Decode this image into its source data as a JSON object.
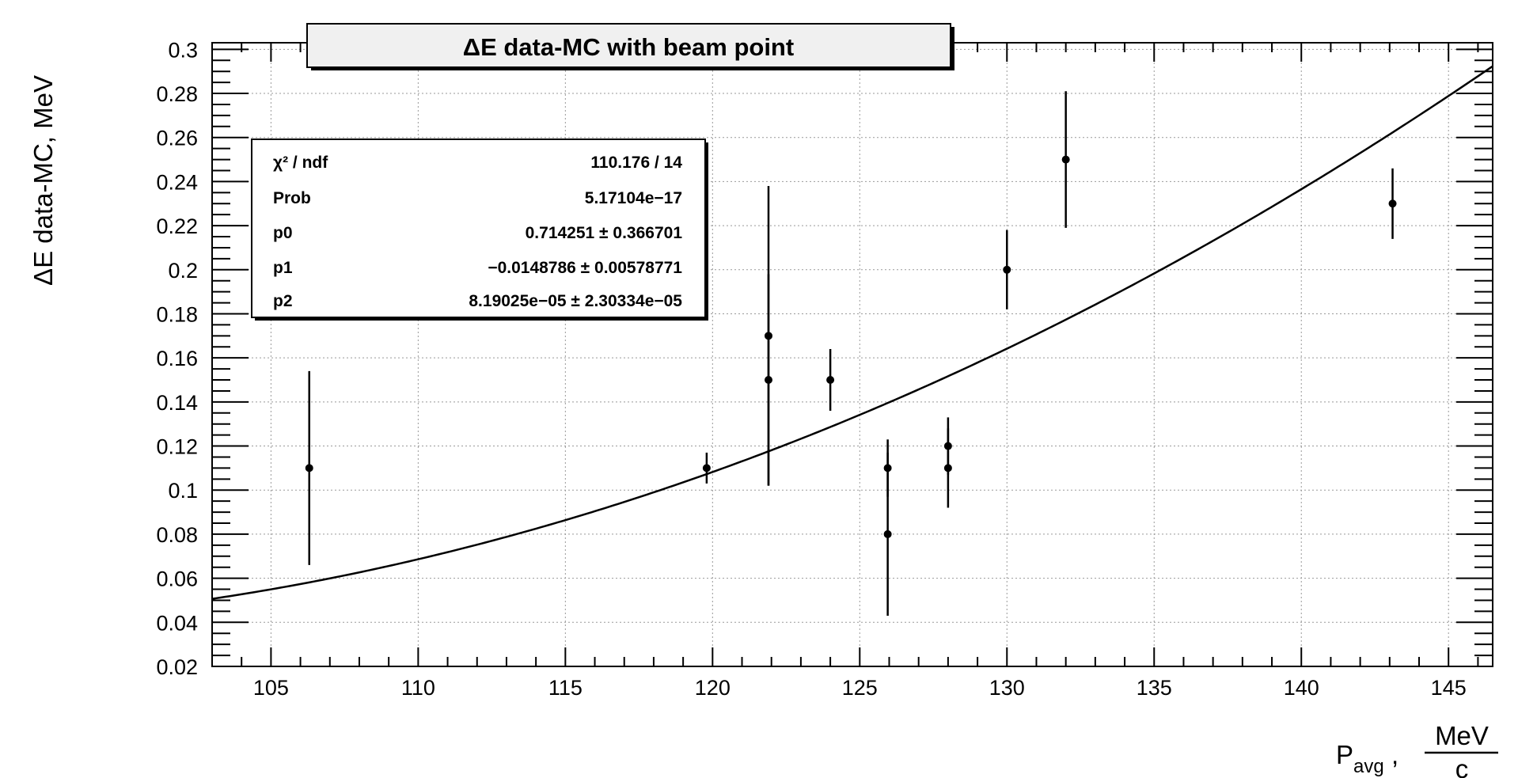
{
  "chart_data": {
    "type": "scatter",
    "title": "ΔE data-MC with beam point",
    "ylabel": "ΔE data-MC, MeV",
    "xlabel": {
      "main": "P",
      "subscript": "avg",
      "separator": ",",
      "unit_numerator": "MeV",
      "unit_denominator": "c"
    },
    "xlim": [
      103,
      146.5
    ],
    "ylim": [
      0.02,
      0.303
    ],
    "x_ticks": [
      105,
      110,
      115,
      120,
      125,
      130,
      135,
      140,
      145
    ],
    "y_ticks": [
      0.02,
      0.04,
      0.06,
      0.08,
      0.1,
      0.12,
      0.14,
      0.16,
      0.18,
      0.2,
      0.22,
      0.24,
      0.26,
      0.28,
      0.3
    ],
    "y_tick_labels": [
      "0.02",
      "0.04",
      "0.06",
      "0.08",
      "0.1",
      "0.12",
      "0.14",
      "0.16",
      "0.18",
      "0.2",
      "0.22",
      "0.24",
      "0.26",
      "0.28",
      "0.3"
    ],
    "grid": true,
    "points": [
      {
        "x": 106.3,
        "y": 0.11,
        "ylo": 0.066,
        "yhi": 0.154
      },
      {
        "x": 119.8,
        "y": 0.11,
        "ylo": 0.103,
        "yhi": 0.117
      },
      {
        "x": 121.9,
        "y": 0.17,
        "ylo": 0.102,
        "yhi": 0.238
      },
      {
        "x": 121.9,
        "y": 0.15,
        "ylo": 0.102,
        "yhi": 0.198
      },
      {
        "x": 124.0,
        "y": 0.15,
        "ylo": 0.136,
        "yhi": 0.164
      },
      {
        "x": 125.95,
        "y": 0.11,
        "ylo": 0.097,
        "yhi": 0.123
      },
      {
        "x": 125.95,
        "y": 0.08,
        "ylo": 0.043,
        "yhi": 0.117
      },
      {
        "x": 128.0,
        "y": 0.12,
        "ylo": 0.107,
        "yhi": 0.133
      },
      {
        "x": 128.0,
        "y": 0.11,
        "ylo": 0.092,
        "yhi": 0.128
      },
      {
        "x": 130.0,
        "y": 0.2,
        "ylo": 0.182,
        "yhi": 0.218
      },
      {
        "x": 132.0,
        "y": 0.25,
        "ylo": 0.219,
        "yhi": 0.281
      },
      {
        "x": 143.1,
        "y": 0.23,
        "ylo": 0.214,
        "yhi": 0.246
      }
    ],
    "fit": {
      "function": "p0 + p1*x + p2*x^2",
      "p0": 0.714251,
      "p1": -0.0148786,
      "p2": 8.19025e-05
    }
  },
  "stats_box": {
    "rows": [
      {
        "label": "χ² / ndf",
        "value": "110.176 / 14"
      },
      {
        "label": "Prob",
        "value": "5.17104e−17"
      },
      {
        "label": "p0",
        "value": "0.714251 ± 0.366701"
      },
      {
        "label": "p1",
        "value": "−0.0148786 ± 0.00578771"
      },
      {
        "label": "p2",
        "value": "8.19025e−05 ± 2.30334e−05"
      }
    ]
  }
}
